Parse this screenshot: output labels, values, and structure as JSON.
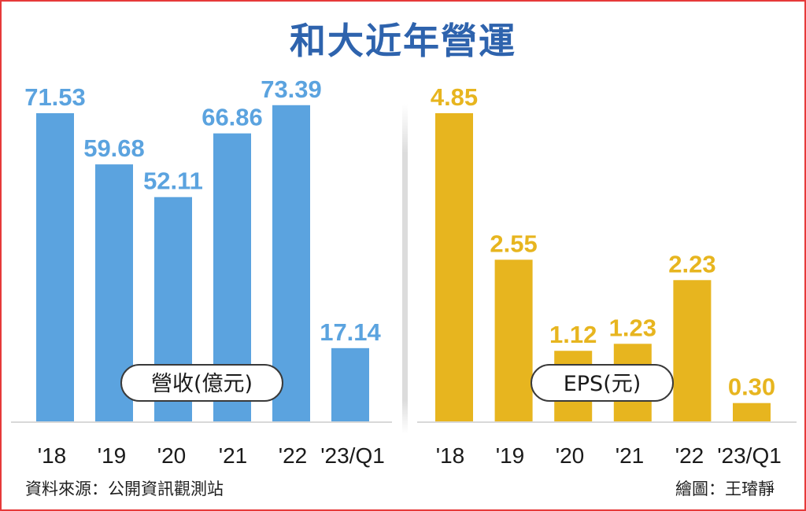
{
  "title": "和大近年營運",
  "source": "資料來源：公開資訊觀測站",
  "credit": "繪圖：王璿靜",
  "chart_data": [
    {
      "type": "bar",
      "label": "營收(億元)",
      "categories": [
        "'18",
        "'19",
        "'20",
        "'21",
        "'22",
        "'23/Q1"
      ],
      "values": [
        71.53,
        59.68,
        52.11,
        66.86,
        73.39,
        17.14
      ],
      "value_labels": [
        "71.53",
        "59.68",
        "52.11",
        "66.86",
        "73.39",
        "17.14"
      ],
      "color": "#5ba3df",
      "label_color": "#5ba3df",
      "ylim": [
        0,
        80
      ]
    },
    {
      "type": "bar",
      "label": "EPS(元)",
      "categories": [
        "'18",
        "'19",
        "'20",
        "'21",
        "'22",
        "'23/Q1"
      ],
      "values": [
        4.85,
        2.55,
        1.12,
        1.23,
        2.23,
        0.3
      ],
      "value_labels": [
        "4.85",
        "2.55",
        "1.12",
        "1.23",
        "2.23",
        "0.30"
      ],
      "color": "#e7b51f",
      "label_color": "#e7b51f",
      "ylim": [
        0,
        5
      ]
    }
  ]
}
